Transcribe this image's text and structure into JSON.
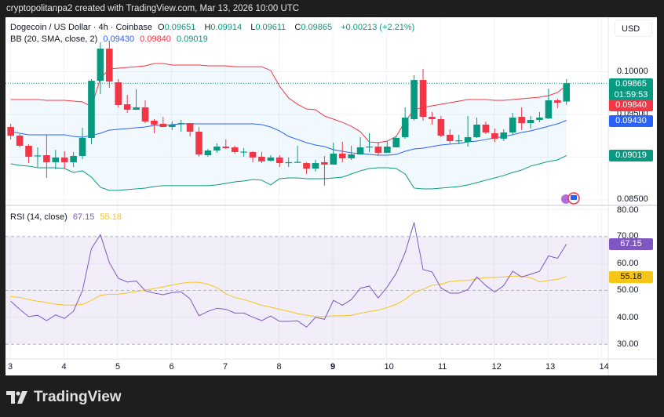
{
  "header": {
    "attribution": "cryptopolitanpa2 created with TradingView.com, Mar 13, 2026 10:00 UTC"
  },
  "symbol": {
    "name": "Dogecoin / US Dollar · 4h · Coinbase",
    "o_label": "O",
    "o": "0.09651",
    "h_label": "H",
    "h": "0.09914",
    "l_label": "L",
    "l": "0.09611",
    "c_label": "C",
    "c": "0.09865",
    "change": "+0.00213 (+2.21%)"
  },
  "bb": {
    "label": "BB (20, SMA, close, 2)",
    "basis": "0.09430",
    "upper": "0.09840",
    "lower": "0.09019"
  },
  "rsi": {
    "label": "RSI (14, close)",
    "value": "67.15",
    "ma": "55.18"
  },
  "currency_button": "USD",
  "price_tags": {
    "last": "0.09865",
    "countdown": "01:59:53",
    "upper": "0.09840",
    "basis": "0.09430",
    "lower": "0.09019"
  },
  "price_axis": [
    "0.10000",
    "0.09500",
    "0.08500"
  ],
  "rsi_axis": [
    "80.00",
    "70.00",
    "60.00",
    "50.00",
    "40.00",
    "30.00"
  ],
  "x_axis": [
    "3",
    "4",
    "5",
    "6",
    "7",
    "8",
    "9",
    "10",
    "11",
    "12",
    "13",
    "14"
  ],
  "brand": "TradingView",
  "colors": {
    "up": "#089981",
    "down": "#f23645",
    "basis": "#2962ff",
    "upper": "#f23645",
    "lower": "#089981",
    "rsi": "#7e57c2",
    "rsi_ma": "#f5c518"
  },
  "chart_data": [
    {
      "type": "candlestick",
      "title": "Dogecoin / US Dollar · 4h · Coinbase",
      "ylim": [
        0.0845,
        0.104
      ],
      "x_ticks": [
        "3",
        "4",
        "5",
        "6",
        "7",
        "8",
        "9",
        "10",
        "11",
        "12",
        "13",
        "14"
      ],
      "ohlc": [
        [
          0.09353,
          0.0939,
          0.09207,
          0.09252
        ],
        [
          0.09252,
          0.0927,
          0.09115,
          0.09133
        ],
        [
          0.09133,
          0.0915,
          0.08931,
          0.09005
        ],
        [
          0.09014,
          0.09115,
          0.08885,
          0.0902
        ],
        [
          0.09023,
          0.09262,
          0.08757,
          0.08941
        ],
        [
          0.08941,
          0.09087,
          0.08858,
          0.08996
        ],
        [
          0.08996,
          0.09069,
          0.08867,
          0.08941
        ],
        [
          0.08941,
          0.0906,
          0.08885,
          0.09014
        ],
        [
          0.09014,
          0.09344,
          0.08977,
          0.09225
        ],
        [
          0.09225,
          0.09913,
          0.09152,
          0.09894
        ],
        [
          0.09894,
          0.10344,
          0.09738,
          0.1027
        ],
        [
          0.1027,
          0.10362,
          0.09812,
          0.09885
        ],
        [
          0.09876,
          0.09913,
          0.09583,
          0.0961
        ],
        [
          0.09619,
          0.09729,
          0.09518,
          0.09555
        ],
        [
          0.09555,
          0.09793,
          0.09555,
          0.09583
        ],
        [
          0.09583,
          0.09665,
          0.09399,
          0.09417
        ],
        [
          0.09427,
          0.09445,
          0.0928,
          0.09381
        ],
        [
          0.0939,
          0.09472,
          0.09353,
          0.09353
        ],
        [
          0.09353,
          0.09417,
          0.09317,
          0.09381
        ],
        [
          0.0939,
          0.09436,
          0.09298,
          0.09399
        ],
        [
          0.09399,
          0.09399,
          0.09243,
          0.09298
        ],
        [
          0.09298,
          0.09353,
          0.09005,
          0.09032
        ],
        [
          0.09023,
          0.09096,
          0.09005,
          0.09078
        ],
        [
          0.09078,
          0.09161,
          0.09051,
          0.09124
        ],
        [
          0.09124,
          0.09207,
          0.09096,
          0.09106
        ],
        [
          0.09115,
          0.09133,
          0.09042,
          0.0906
        ],
        [
          0.0906,
          0.09106,
          0.09005,
          0.09065
        ],
        [
          0.0906,
          0.09069,
          0.08941,
          0.08996
        ],
        [
          0.09005,
          0.0906,
          0.08931,
          0.0895
        ],
        [
          0.08959,
          0.09023,
          0.0895,
          0.08996
        ],
        [
          0.08996,
          0.09023,
          0.08885,
          0.08931
        ],
        [
          0.08941,
          0.08996,
          0.08885,
          0.08941
        ],
        [
          0.08941,
          0.09133,
          0.08931,
          0.08945
        ],
        [
          0.08931,
          0.08941,
          0.08803,
          0.08867
        ],
        [
          0.08867,
          0.08968,
          0.08831,
          0.08931
        ],
        [
          0.08941,
          0.09014,
          0.08666,
          0.08913
        ],
        [
          0.08913,
          0.0917,
          0.08913,
          0.09042
        ],
        [
          0.09042,
          0.09179,
          0.08941,
          0.08986
        ],
        [
          0.08986,
          0.09133,
          0.08968,
          0.09032
        ],
        [
          0.09032,
          0.09234,
          0.09032,
          0.09115
        ],
        [
          0.09124,
          0.0928,
          0.0906,
          0.09124
        ],
        [
          0.09124,
          0.09179,
          0.09014,
          0.09051
        ],
        [
          0.09051,
          0.09188,
          0.09051,
          0.09124
        ],
        [
          0.09115,
          0.09243,
          0.09115,
          0.09225
        ],
        [
          0.09234,
          0.09583,
          0.09216,
          0.09463
        ],
        [
          0.09445,
          0.09959,
          0.09427,
          0.09903
        ],
        [
          0.09903,
          0.10032,
          0.09427,
          0.09472
        ],
        [
          0.09472,
          0.09528,
          0.09381,
          0.09445
        ],
        [
          0.09445,
          0.09482,
          0.09234,
          0.09252
        ],
        [
          0.09262,
          0.09326,
          0.09161,
          0.09188
        ],
        [
          0.09197,
          0.09262,
          0.09152,
          0.09197
        ],
        [
          0.09179,
          0.09482,
          0.09124,
          0.09234
        ],
        [
          0.09234,
          0.09463,
          0.09225,
          0.09381
        ],
        [
          0.09381,
          0.09417,
          0.0927,
          0.09289
        ],
        [
          0.0928,
          0.09335,
          0.09179,
          0.09216
        ],
        [
          0.09216,
          0.09326,
          0.09188,
          0.09289
        ],
        [
          0.09289,
          0.09518,
          0.09262,
          0.09463
        ],
        [
          0.09472,
          0.09583,
          0.09317,
          0.09399
        ],
        [
          0.09399,
          0.09482,
          0.09335,
          0.09436
        ],
        [
          0.09436,
          0.09528,
          0.09408,
          0.09463
        ],
        [
          0.09454,
          0.09803,
          0.09445,
          0.09665
        ],
        [
          0.09665,
          0.09683,
          0.09573,
          0.09638
        ],
        [
          0.09651,
          0.09914,
          0.09611,
          0.09865
        ]
      ],
      "bb_upper": [
        0.09674,
        0.09674,
        0.09674,
        0.09674,
        0.09665,
        0.09665,
        0.09665,
        0.09656,
        0.09647,
        0.09592,
        0.09922,
        0.10032,
        0.10041,
        0.1005,
        0.10059,
        0.10069,
        0.10096,
        0.10096,
        0.10078,
        0.10078,
        0.10078,
        0.10078,
        0.10069,
        0.10069,
        0.10069,
        0.10059,
        0.10059,
        0.10059,
        0.10059,
        0.10014,
        0.0983,
        0.09693,
        0.09619,
        0.09564,
        0.09555,
        0.09482,
        0.09445,
        0.09408,
        0.09362,
        0.09298,
        0.09179,
        0.0917,
        0.09188,
        0.09243,
        0.09417,
        0.09555,
        0.09583,
        0.09601,
        0.09619,
        0.09638,
        0.09656,
        0.09674,
        0.09674,
        0.09674,
        0.09665,
        0.09665,
        0.09674,
        0.09683,
        0.09693,
        0.09702,
        0.0972,
        0.09757,
        0.0984
      ],
      "bb_basis": [
        0.09298,
        0.0928,
        0.09262,
        0.09262,
        0.09262,
        0.09262,
        0.09262,
        0.09243,
        0.09234,
        0.09252,
        0.0928,
        0.09317,
        0.09326,
        0.09335,
        0.09344,
        0.09353,
        0.09372,
        0.09372,
        0.09381,
        0.0939,
        0.0939,
        0.0939,
        0.0939,
        0.0939,
        0.0939,
        0.0939,
        0.0939,
        0.0939,
        0.09381,
        0.09353,
        0.09307,
        0.09243,
        0.09207,
        0.0917,
        0.09142,
        0.09124,
        0.09087,
        0.09069,
        0.09051,
        0.09042,
        0.09032,
        0.09023,
        0.09023,
        0.09032,
        0.09069,
        0.09096,
        0.09106,
        0.09124,
        0.09142,
        0.09152,
        0.09161,
        0.09179,
        0.09188,
        0.09207,
        0.09225,
        0.09243,
        0.09262,
        0.09289,
        0.09307,
        0.09335,
        0.09362,
        0.0939,
        0.0943
      ],
      "bb_lower": [
        0.08922,
        0.08904,
        0.08895,
        0.08876,
        0.08876,
        0.08876,
        0.08867,
        0.08821,
        0.0884,
        0.08766,
        0.08647,
        0.08611,
        0.08611,
        0.0862,
        0.08629,
        0.08638,
        0.08656,
        0.08666,
        0.08666,
        0.08666,
        0.08666,
        0.08666,
        0.08666,
        0.08675,
        0.08693,
        0.08711,
        0.08721,
        0.08739,
        0.0873,
        0.08675,
        0.08748,
        0.08757,
        0.08757,
        0.08748,
        0.08748,
        0.08748,
        0.08757,
        0.08766,
        0.08803,
        0.0884,
        0.08867,
        0.08876,
        0.08876,
        0.08867,
        0.08803,
        0.08638,
        0.08629,
        0.08629,
        0.08638,
        0.08647,
        0.08656,
        0.08675,
        0.08702,
        0.0873,
        0.08757,
        0.08785,
        0.08821,
        0.08849,
        0.08895,
        0.08922,
        0.0895,
        0.08968,
        0.09019
      ]
    },
    {
      "type": "line",
      "title": "RSI (14, close)",
      "ylim": [
        27,
        82
      ],
      "bands": [
        70,
        50,
        30
      ],
      "series": [
        {
          "name": "RSI",
          "values": [
            46.0,
            43.0,
            40.3,
            40.8,
            38.8,
            40.9,
            39.6,
            42.3,
            49.9,
            65.5,
            70.7,
            60.3,
            54.5,
            53.1,
            53.5,
            49.9,
            49.0,
            48.4,
            49.2,
            49.5,
            46.9,
            40.6,
            42.2,
            43.4,
            43.0,
            41.6,
            41.6,
            40.1,
            38.8,
            40.5,
            38.5,
            38.5,
            38.7,
            36.4,
            40.0,
            39.3,
            46.3,
            44.5,
            46.6,
            50.8,
            51.6,
            47.2,
            51.3,
            56.3,
            64.0,
            75.2,
            57.7,
            56.9,
            50.9,
            49.0,
            49.0,
            50.3,
            55.0,
            51.8,
            49.4,
            51.8,
            57.1,
            55.0,
            56.0,
            57.1,
            62.8,
            61.9,
            67.15
          ]
        },
        {
          "name": "MA",
          "values": [
            47.7,
            47.4,
            46.6,
            46.0,
            45.5,
            44.9,
            44.6,
            44.5,
            44.8,
            46.3,
            48.2,
            48.6,
            48.6,
            49.1,
            49.6,
            50.1,
            50.7,
            51.3,
            52.0,
            52.6,
            53.0,
            53.0,
            52.3,
            51.0,
            48.7,
            47.4,
            46.6,
            45.6,
            44.5,
            43.8,
            43.0,
            42.3,
            41.4,
            40.8,
            40.3,
            40.3,
            40.6,
            40.6,
            40.8,
            41.5,
            42.2,
            42.7,
            43.6,
            44.8,
            46.7,
            49.2,
            50.5,
            51.9,
            52.3,
            53.3,
            53.6,
            53.7,
            54.3,
            54.8,
            54.8,
            55.0,
            55.3,
            55.3,
            54.7,
            53.2,
            53.7,
            54.1,
            55.18
          ]
        }
      ]
    }
  ]
}
